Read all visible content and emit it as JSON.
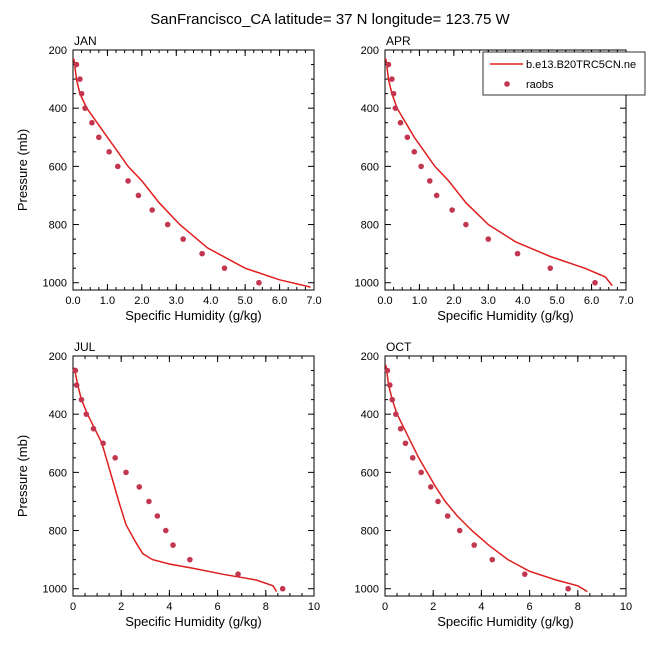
{
  "title": "SanFrancisco_CA  latitude= 37 N longitude= 123.75 W",
  "colors": {
    "model": "#e01e1e",
    "raobs": "#c2374f",
    "axis": "#000000"
  },
  "legend": {
    "placement": "top-right",
    "model_label": "b.e13.B20TRC5CN.ne",
    "raobs_label": "raobs"
  },
  "chart_data": [
    {
      "type": "line",
      "panel": "JAN",
      "xlabel": "Specific Humidity (g/kg)",
      "ylabel": "Pressure (mb)",
      "xlim": [
        0,
        7
      ],
      "ylim": [
        200,
        1025
      ],
      "y_inverted": true,
      "xticks": [
        0,
        1,
        2,
        3,
        4,
        5,
        6,
        7
      ],
      "xtick_labels": [
        "0.0",
        "1.0",
        "2.0",
        "3.0",
        "4.0",
        "5.0",
        "6.0",
        "7.0"
      ],
      "yticks": [
        200,
        400,
        600,
        800,
        1000
      ],
      "series": [
        {
          "name": "b.e13.B20TRC5CN.ne",
          "kind": "line",
          "x": [
            0.02,
            0.05,
            0.1,
            0.2,
            0.4,
            0.7,
            1.0,
            1.3,
            1.6,
            2.0,
            2.5,
            3.1,
            3.9,
            5.0,
            6.0,
            6.9
          ],
          "y": [
            230,
            250,
            300,
            350,
            400,
            450,
            500,
            550,
            600,
            650,
            725,
            800,
            880,
            950,
            990,
            1015
          ]
        },
        {
          "name": "raobs",
          "kind": "points",
          "x": [
            0.1,
            0.2,
            0.25,
            0.35,
            0.55,
            0.75,
            1.05,
            1.3,
            1.6,
            1.9,
            2.3,
            2.75,
            3.2,
            3.75,
            4.4,
            5.4
          ],
          "y": [
            250,
            300,
            350,
            400,
            450,
            500,
            550,
            600,
            650,
            700,
            750,
            800,
            850,
            900,
            950,
            1000
          ]
        }
      ]
    },
    {
      "type": "line",
      "panel": "APR",
      "xlabel": "Specific Humidity (g/kg)",
      "ylabel": "",
      "xlim": [
        0,
        7
      ],
      "ylim": [
        200,
        1025
      ],
      "y_inverted": true,
      "xticks": [
        0,
        1,
        2,
        3,
        4,
        5,
        6,
        7
      ],
      "xtick_labels": [
        "0.0",
        "1.0",
        "2.0",
        "3.0",
        "4.0",
        "5.0",
        "6.0",
        "7.0"
      ],
      "yticks": [
        200,
        400,
        600,
        800,
        1000
      ],
      "series": [
        {
          "name": "b.e13.B20TRC5CN.ne",
          "kind": "line",
          "x": [
            0.02,
            0.05,
            0.1,
            0.2,
            0.35,
            0.6,
            0.85,
            1.15,
            1.45,
            1.85,
            2.35,
            3.0,
            3.8,
            4.8,
            5.8,
            6.4,
            6.6
          ],
          "y": [
            230,
            250,
            300,
            350,
            400,
            450,
            500,
            550,
            600,
            650,
            725,
            800,
            860,
            910,
            950,
            980,
            1010
          ]
        },
        {
          "name": "raobs",
          "kind": "points",
          "x": [
            0.1,
            0.2,
            0.25,
            0.3,
            0.45,
            0.65,
            0.85,
            1.05,
            1.3,
            1.5,
            1.95,
            2.35,
            3.0,
            3.85,
            4.8,
            6.1
          ],
          "y": [
            250,
            300,
            350,
            400,
            450,
            500,
            550,
            600,
            650,
            700,
            750,
            800,
            850,
            900,
            950,
            1000
          ]
        }
      ]
    },
    {
      "type": "line",
      "panel": "JUL",
      "xlabel": "Specific Humidity (g/kg)",
      "ylabel": "Pressure (mb)",
      "xlim": [
        0,
        10
      ],
      "ylim": [
        200,
        1025
      ],
      "y_inverted": true,
      "xticks": [
        0,
        2,
        4,
        6,
        8,
        10
      ],
      "xtick_labels": [
        "0",
        "2",
        "4",
        "6",
        "8",
        "10"
      ],
      "yticks": [
        200,
        400,
        600,
        800,
        1000
      ],
      "series": [
        {
          "name": "b.e13.B20TRC5CN.ne",
          "kind": "line",
          "x": [
            0.05,
            0.1,
            0.2,
            0.35,
            0.6,
            0.9,
            1.2,
            1.55,
            1.9,
            2.2,
            2.6,
            2.9,
            3.3,
            4.0,
            5.0,
            6.2,
            7.6,
            8.3,
            8.45
          ],
          "y": [
            240,
            260,
            300,
            350,
            400,
            450,
            500,
            600,
            700,
            780,
            840,
            880,
            900,
            915,
            930,
            950,
            970,
            990,
            1010
          ]
        },
        {
          "name": "raobs",
          "kind": "points",
          "x": [
            0.1,
            0.15,
            0.35,
            0.55,
            0.85,
            1.25,
            1.75,
            2.2,
            2.75,
            3.15,
            3.5,
            3.85,
            4.15,
            4.85,
            6.85,
            8.7
          ],
          "y": [
            250,
            300,
            350,
            400,
            450,
            500,
            550,
            600,
            650,
            700,
            750,
            800,
            850,
            900,
            950,
            1000
          ]
        }
      ]
    },
    {
      "type": "line",
      "panel": "OCT",
      "xlabel": "Specific Humidity (g/kg)",
      "ylabel": "",
      "xlim": [
        0,
        10
      ],
      "ylim": [
        200,
        1025
      ],
      "y_inverted": true,
      "xticks": [
        0,
        2,
        4,
        6,
        8,
        10
      ],
      "xtick_labels": [
        "0",
        "2",
        "4",
        "6",
        "8",
        "10"
      ],
      "yticks": [
        200,
        400,
        600,
        800,
        1000
      ],
      "series": [
        {
          "name": "b.e13.B20TRC5CN.ne",
          "kind": "line",
          "x": [
            0.03,
            0.07,
            0.15,
            0.3,
            0.5,
            0.8,
            1.1,
            1.4,
            1.75,
            2.1,
            2.5,
            3.0,
            3.6,
            4.3,
            5.1,
            6.0,
            7.1,
            8.0,
            8.4
          ],
          "y": [
            230,
            250,
            300,
            350,
            400,
            450,
            500,
            550,
            600,
            650,
            700,
            750,
            800,
            850,
            900,
            940,
            970,
            990,
            1010
          ]
        },
        {
          "name": "raobs",
          "kind": "points",
          "x": [
            0.1,
            0.2,
            0.3,
            0.45,
            0.65,
            0.85,
            1.15,
            1.5,
            1.9,
            2.2,
            2.6,
            3.1,
            3.7,
            4.45,
            5.8,
            7.6
          ],
          "y": [
            250,
            300,
            350,
            400,
            450,
            500,
            550,
            600,
            650,
            700,
            750,
            800,
            850,
            900,
            950,
            1000
          ]
        }
      ]
    }
  ]
}
